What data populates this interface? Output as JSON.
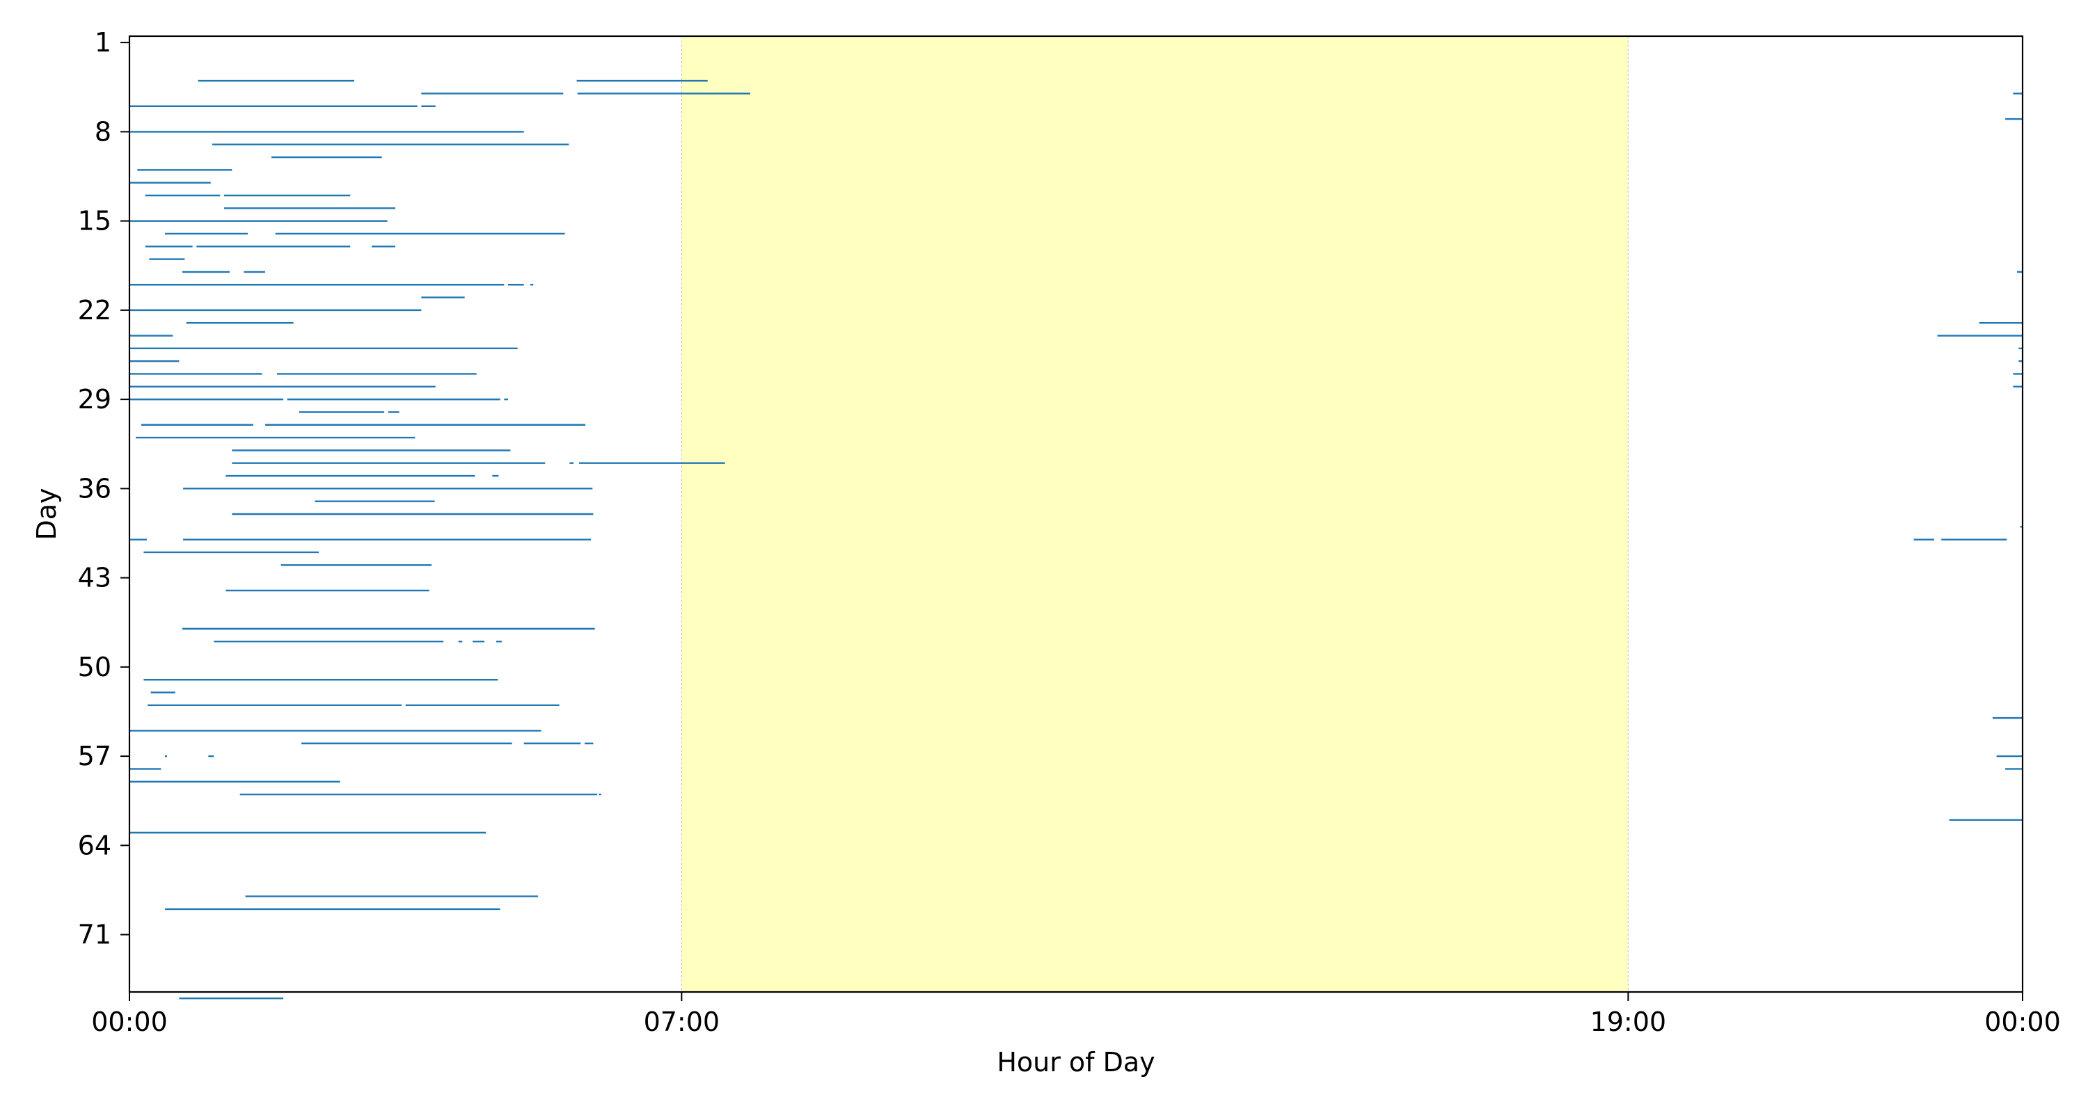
{
  "chart_data": {
    "type": "line",
    "title": "",
    "xlabel": "Hour of Day",
    "ylabel": "Day",
    "xlim": [
      0,
      24
    ],
    "ylim": [
      75.5,
      0.5
    ],
    "x_ticks": [
      {
        "value": 0,
        "label": "00:00"
      },
      {
        "value": 7,
        "label": "07:00"
      },
      {
        "value": 19,
        "label": "19:00"
      },
      {
        "value": 24,
        "label": "00:00"
      }
    ],
    "y_ticks": [
      1,
      8,
      15,
      22,
      29,
      36,
      43,
      50,
      57,
      64,
      71
    ],
    "shaded_band": {
      "from": 7,
      "to": 19,
      "color": "#ffffc0"
    },
    "series_color": "#1f77b4",
    "grid": false,
    "legend": false,
    "segments": [
      {
        "day": 4,
        "ranges": [
          [
            0.87,
            2.85
          ],
          [
            5.67,
            7.33
          ]
        ]
      },
      {
        "day": 5,
        "ranges": [
          [
            3.7,
            5.5
          ],
          [
            5.68,
            7.87
          ],
          [
            23.88,
            24.0
          ]
        ]
      },
      {
        "day": 6,
        "ranges": [
          [
            0.0,
            3.65
          ],
          [
            3.7,
            3.88
          ]
        ]
      },
      {
        "day": 7,
        "ranges": [
          [
            23.78,
            24.0
          ]
        ]
      },
      {
        "day": 8,
        "ranges": [
          [
            0.0,
            5.0
          ]
        ]
      },
      {
        "day": 9,
        "ranges": [
          [
            1.05,
            5.57
          ]
        ]
      },
      {
        "day": 10,
        "ranges": [
          [
            1.8,
            3.2
          ]
        ]
      },
      {
        "day": 11,
        "ranges": [
          [
            0.1,
            1.3
          ]
        ]
      },
      {
        "day": 12,
        "ranges": [
          [
            0.0,
            1.03
          ]
        ]
      },
      {
        "day": 13,
        "ranges": [
          [
            0.2,
            1.15
          ],
          [
            1.2,
            2.8
          ]
        ]
      },
      {
        "day": 14,
        "ranges": [
          [
            1.2,
            3.37
          ]
        ]
      },
      {
        "day": 15,
        "ranges": [
          [
            0.0,
            3.27
          ]
        ]
      },
      {
        "day": 16,
        "ranges": [
          [
            0.45,
            1.5
          ],
          [
            1.85,
            5.52
          ]
        ]
      },
      {
        "day": 17,
        "ranges": [
          [
            0.2,
            0.8
          ],
          [
            0.85,
            2.8
          ],
          [
            3.07,
            3.37
          ]
        ]
      },
      {
        "day": 18,
        "ranges": [
          [
            0.25,
            0.7
          ]
        ]
      },
      {
        "day": 19,
        "ranges": [
          [
            0.67,
            1.27
          ],
          [
            1.45,
            1.72
          ],
          [
            23.93,
            24.0
          ]
        ]
      },
      {
        "day": 20,
        "ranges": [
          [
            0.0,
            4.75
          ],
          [
            4.8,
            5.0
          ],
          [
            5.08,
            5.12
          ]
        ]
      },
      {
        "day": 21,
        "ranges": [
          [
            3.7,
            4.25
          ]
        ]
      },
      {
        "day": 22,
        "ranges": [
          [
            0.0,
            3.7
          ]
        ]
      },
      {
        "day": 23,
        "ranges": [
          [
            0.72,
            2.08
          ],
          [
            23.45,
            24.0
          ]
        ]
      },
      {
        "day": 24,
        "ranges": [
          [
            0.0,
            0.55
          ],
          [
            22.92,
            24.0
          ]
        ]
      },
      {
        "day": 25,
        "ranges": [
          [
            0.0,
            4.92
          ],
          [
            23.95,
            24.0
          ]
        ]
      },
      {
        "day": 26,
        "ranges": [
          [
            0.0,
            0.63
          ],
          [
            23.95,
            24.0
          ]
        ]
      },
      {
        "day": 27,
        "ranges": [
          [
            0.0,
            1.68
          ],
          [
            1.87,
            4.4
          ],
          [
            23.88,
            24.0
          ]
        ]
      },
      {
        "day": 28,
        "ranges": [
          [
            0.0,
            3.88
          ],
          [
            23.88,
            24.0
          ]
        ]
      },
      {
        "day": 29,
        "ranges": [
          [
            0.0,
            1.95
          ],
          [
            2.0,
            4.7
          ],
          [
            4.75,
            4.8
          ]
        ]
      },
      {
        "day": 30,
        "ranges": [
          [
            2.15,
            3.23
          ],
          [
            3.28,
            3.42
          ]
        ]
      },
      {
        "day": 31,
        "ranges": [
          [
            0.15,
            1.57
          ],
          [
            1.72,
            5.78
          ]
        ]
      },
      {
        "day": 32,
        "ranges": [
          [
            0.08,
            3.62
          ]
        ]
      },
      {
        "day": 33,
        "ranges": [
          [
            1.3,
            4.83
          ]
        ]
      },
      {
        "day": 34,
        "ranges": [
          [
            1.3,
            5.27
          ],
          [
            5.58,
            5.63
          ],
          [
            5.7,
            7.55
          ]
        ]
      },
      {
        "day": 35,
        "ranges": [
          [
            1.22,
            4.38
          ],
          [
            4.6,
            4.68
          ]
        ]
      },
      {
        "day": 36,
        "ranges": [
          [
            0.68,
            5.87
          ]
        ]
      },
      {
        "day": 37,
        "ranges": [
          [
            2.35,
            3.87
          ]
        ]
      },
      {
        "day": 38,
        "ranges": [
          [
            1.3,
            5.88
          ]
        ]
      },
      {
        "day": 39,
        "ranges": [
          [
            23.97,
            24.0
          ]
        ]
      },
      {
        "day": 40,
        "ranges": [
          [
            0.0,
            0.22
          ],
          [
            0.68,
            5.85
          ],
          [
            22.62,
            22.88
          ],
          [
            22.97,
            23.8
          ]
        ]
      },
      {
        "day": 41,
        "ranges": [
          [
            0.18,
            2.4
          ]
        ]
      },
      {
        "day": 42,
        "ranges": [
          [
            1.92,
            3.83
          ]
        ]
      },
      {
        "day": 44,
        "ranges": [
          [
            1.22,
            3.8
          ]
        ]
      },
      {
        "day": 47,
        "ranges": [
          [
            0.67,
            5.9
          ]
        ]
      },
      {
        "day": 48,
        "ranges": [
          [
            1.07,
            3.98
          ],
          [
            4.17,
            4.22
          ],
          [
            4.35,
            4.5
          ],
          [
            4.65,
            4.72
          ]
        ]
      },
      {
        "day": 51,
        "ranges": [
          [
            0.18,
            4.67
          ]
        ]
      },
      {
        "day": 52,
        "ranges": [
          [
            0.27,
            0.58
          ]
        ]
      },
      {
        "day": 53,
        "ranges": [
          [
            0.23,
            3.45
          ],
          [
            3.5,
            5.45
          ]
        ]
      },
      {
        "day": 54,
        "ranges": [
          [
            23.62,
            24.0
          ]
        ]
      },
      {
        "day": 55,
        "ranges": [
          [
            0.0,
            5.22
          ]
        ]
      },
      {
        "day": 56,
        "ranges": [
          [
            2.18,
            4.85
          ],
          [
            5.0,
            5.72
          ],
          [
            5.77,
            5.88
          ]
        ]
      },
      {
        "day": 57,
        "ranges": [
          [
            0.45,
            0.47
          ],
          [
            1.0,
            1.07
          ],
          [
            23.67,
            24.0
          ]
        ]
      },
      {
        "day": 58,
        "ranges": [
          [
            0.0,
            0.4
          ],
          [
            23.78,
            24.0
          ]
        ]
      },
      {
        "day": 59,
        "ranges": [
          [
            0.0,
            2.67
          ]
        ]
      },
      {
        "day": 60,
        "ranges": [
          [
            1.4,
            5.93
          ],
          [
            5.95,
            5.98
          ]
        ]
      },
      {
        "day": 62,
        "ranges": [
          [
            23.07,
            24.0
          ]
        ]
      },
      {
        "day": 63,
        "ranges": [
          [
            0.0,
            4.52
          ]
        ]
      },
      {
        "day": 68,
        "ranges": [
          [
            1.47,
            5.18
          ]
        ]
      },
      {
        "day": 69,
        "ranges": [
          [
            0.45,
            4.7
          ]
        ]
      },
      {
        "day": 76,
        "ranges": [
          [
            0.63,
            1.95
          ]
        ]
      }
    ]
  }
}
